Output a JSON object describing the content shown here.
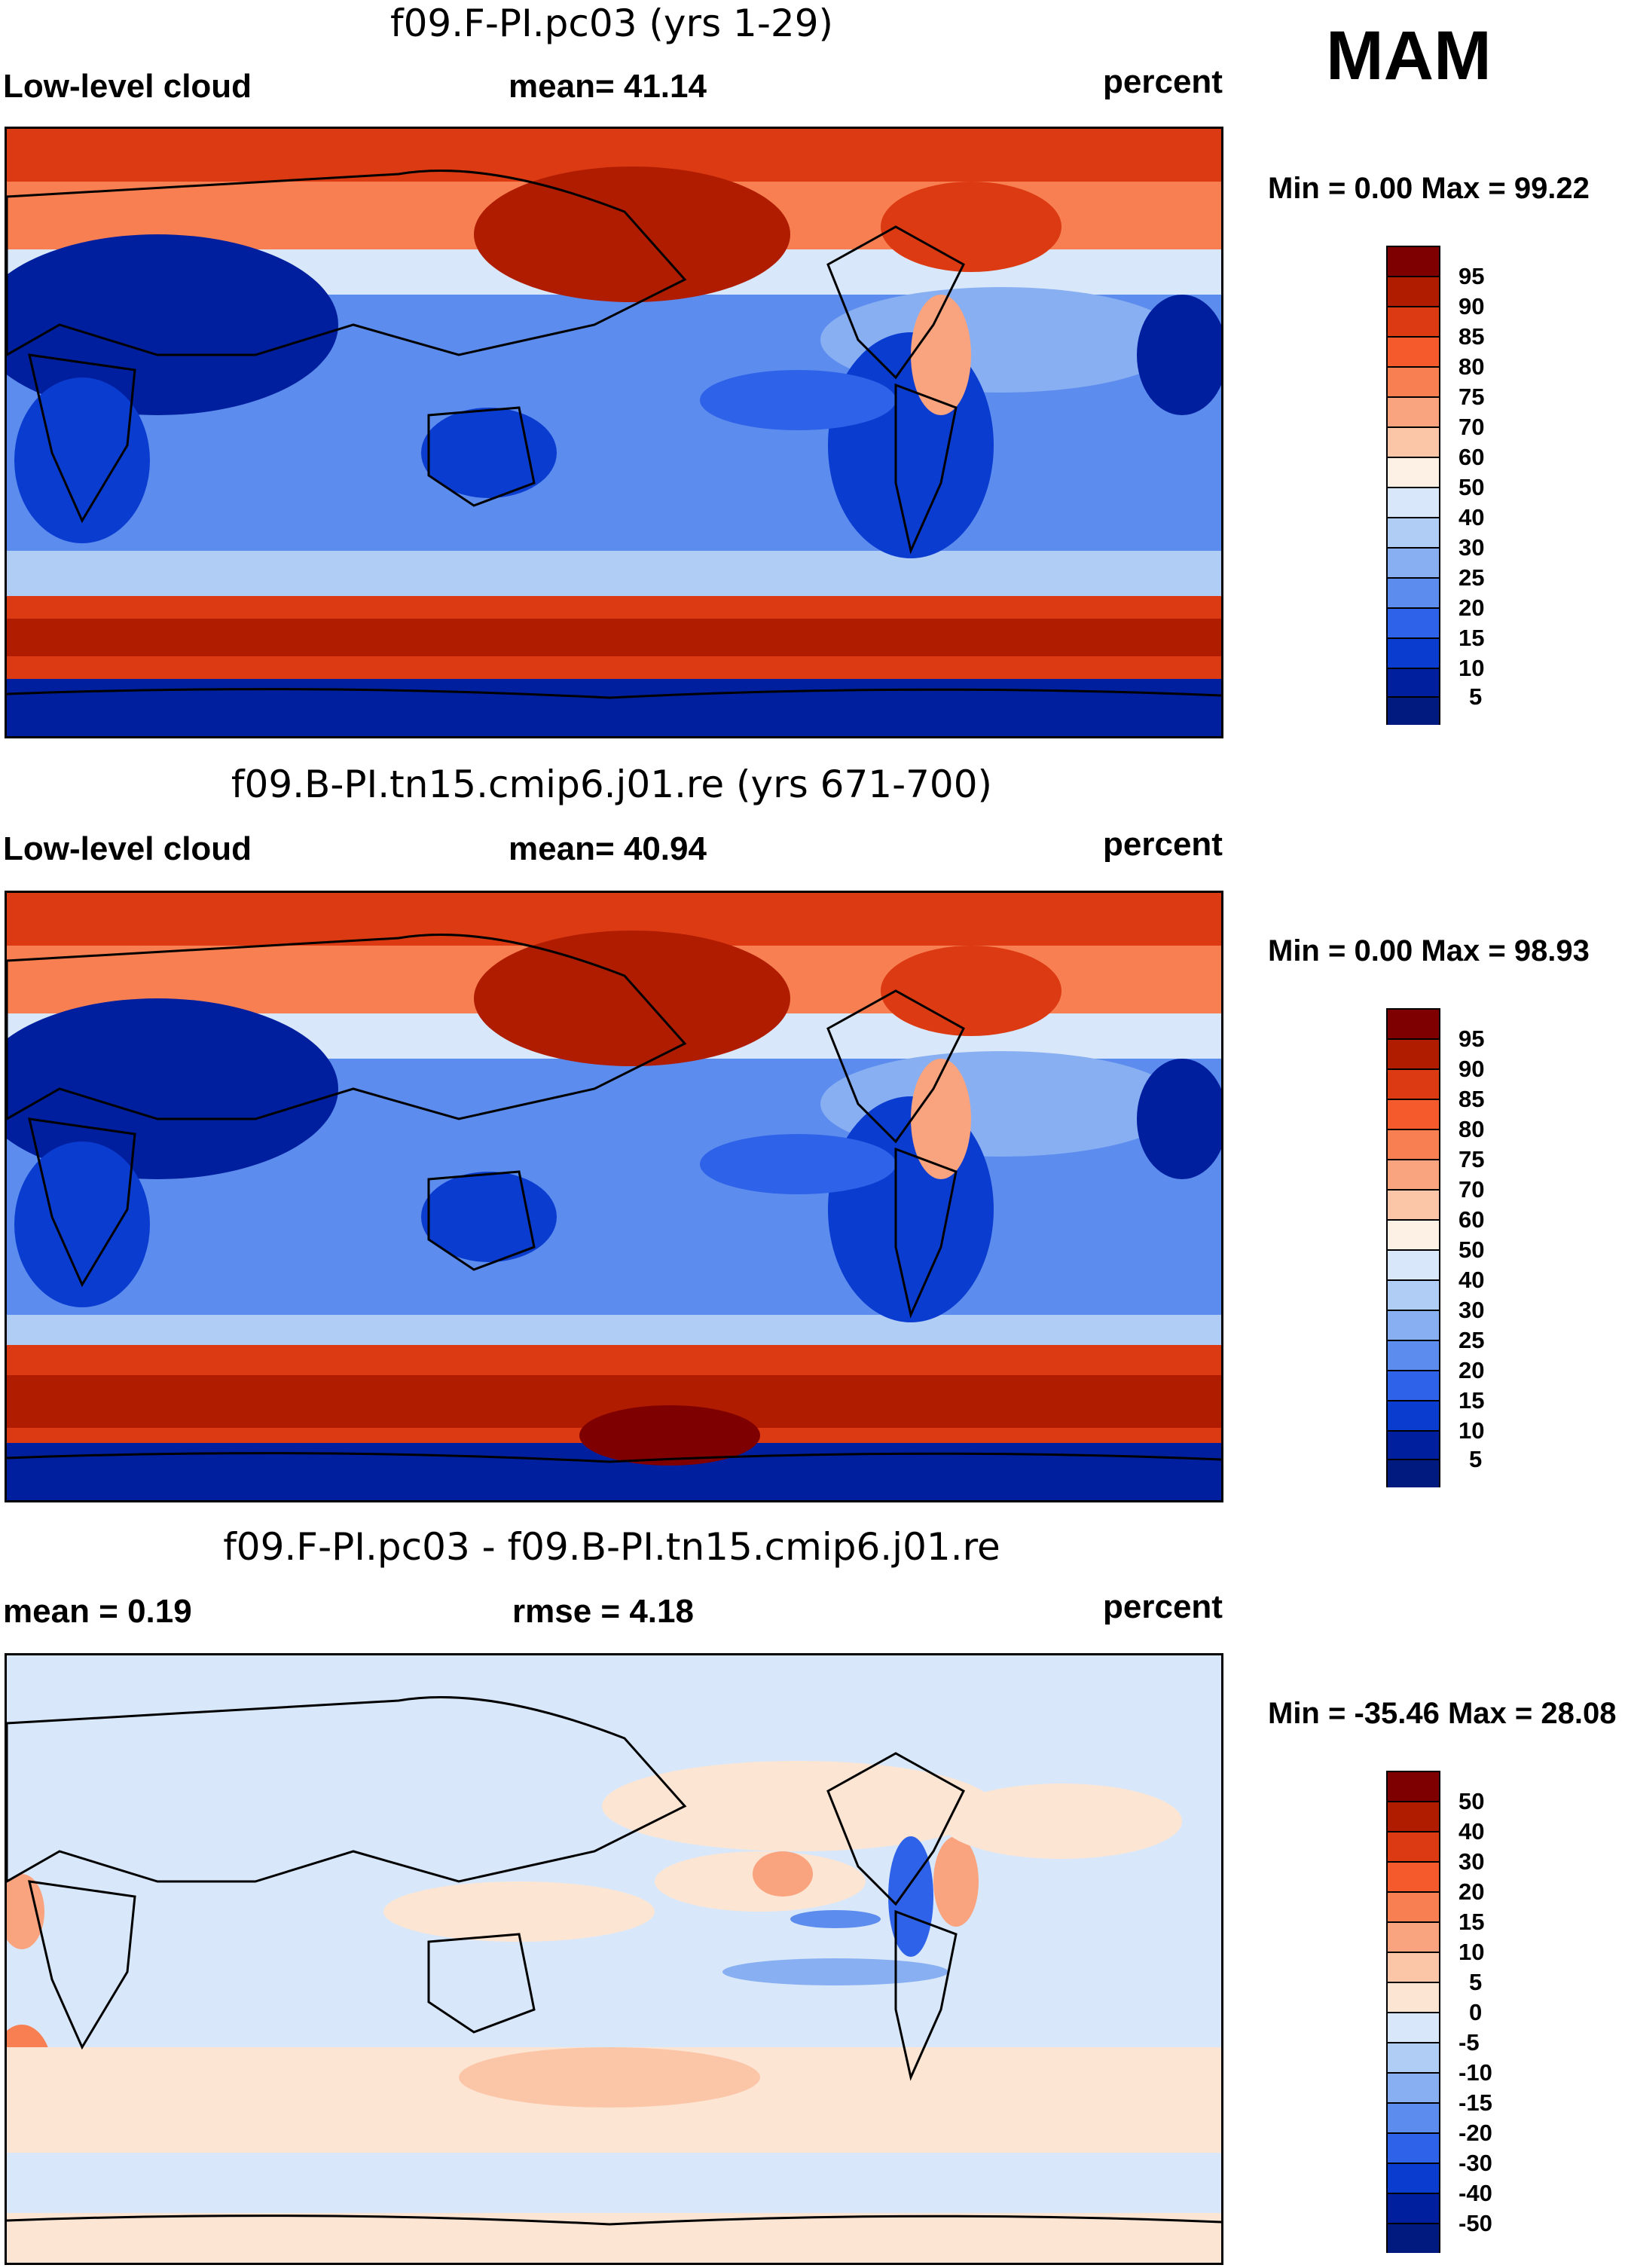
{
  "season": "MAM",
  "panels": [
    {
      "id": "model",
      "title": "f09.F-PI.pc03 (yrs 1-29)",
      "left_label": "Low-level cloud",
      "center_label": "mean=  41.14",
      "units": "percent",
      "minmax": "Min =   0.00 Max =  99.22",
      "legend": [
        "95",
        "90",
        "85",
        "80",
        "75",
        "70",
        "60",
        "50",
        "40",
        "30",
        "25",
        "20",
        "15",
        "10",
        "5"
      ]
    },
    {
      "id": "control",
      "title": "f09.B-PI.tn15.cmip6.j01.re (yrs 671-700)",
      "left_label": "Low-level cloud",
      "center_label": "mean=  40.94",
      "units": "percent",
      "minmax": "Min =   0.00 Max =  98.93",
      "legend": [
        "95",
        "90",
        "85",
        "80",
        "75",
        "70",
        "60",
        "50",
        "40",
        "30",
        "25",
        "20",
        "15",
        "10",
        "5"
      ]
    },
    {
      "id": "difference",
      "title": "f09.F-PI.pc03 - f09.B-PI.tn15.cmip6.j01.re",
      "left_label": "mean =   0.19",
      "center_label": "rmse =   4.18",
      "units": "percent",
      "minmax": "Min = -35.46 Max =  28.08",
      "legend": [
        "50",
        "40",
        "30",
        "20",
        "15",
        "10",
        "5",
        "0",
        "-5",
        "-10",
        "-15",
        "-20",
        "-30",
        "-40",
        "-50"
      ]
    }
  ],
  "colors": {
    "seq": [
      "#7f0000",
      "#b01c00",
      "#dc3a12",
      "#f45a2c",
      "#f77f52",
      "#f9a47e",
      "#fbc6a8",
      "#fdf0e4",
      "#d8e8fa",
      "#b0cdf6",
      "#88aff2",
      "#5c8cee",
      "#2e62e8",
      "#0a3cd0",
      "#001f9e",
      "#001a80"
    ],
    "div": [
      "#7f0000",
      "#b01c00",
      "#dc3a12",
      "#f45a2c",
      "#f77f52",
      "#f9a47e",
      "#fbc6a8",
      "#fde5d4",
      "#d8e8fa",
      "#b0cdf6",
      "#88aff2",
      "#5c8cee",
      "#2e62e8",
      "#0a3cd0",
      "#001f9e",
      "#001a80"
    ]
  }
}
